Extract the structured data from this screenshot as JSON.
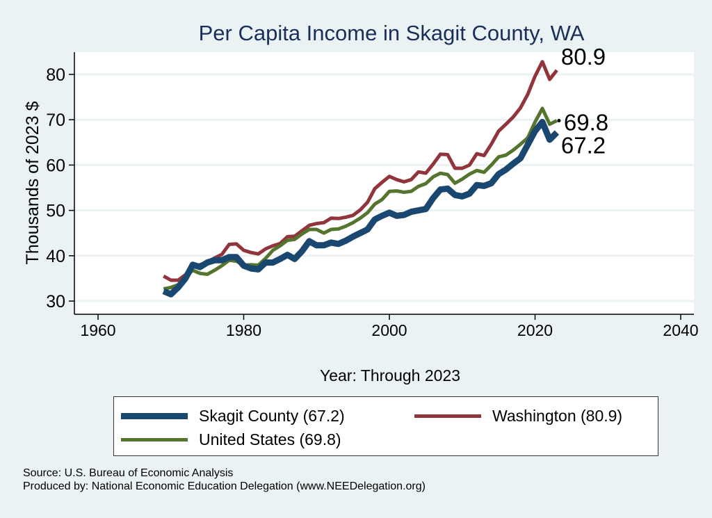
{
  "chart_data": {
    "type": "line",
    "title": "Per Capita Income in Skagit County, WA",
    "xlabel": "Year: Through 2023",
    "ylabel": "Thousands of 2023 $",
    "xlim": [
      1960,
      2040
    ],
    "ylim": [
      28,
      85
    ],
    "xticks": [
      1960,
      1980,
      2000,
      2020,
      2040
    ],
    "yticks": [
      30,
      40,
      50,
      60,
      70,
      80
    ],
    "grid": true,
    "legend_position": "bottom",
    "x_start": 1969,
    "series": [
      {
        "name": "Skagit County (67.2)",
        "color": "#1a476f",
        "end_label": "67.2",
        "values": [
          32.2,
          31.5,
          33,
          35,
          38,
          37.5,
          38.5,
          39,
          39,
          39.7,
          39.7,
          37.8,
          37.2,
          37,
          38.5,
          38.5,
          39.3,
          40.2,
          39.3,
          41,
          43.2,
          42.3,
          42.3,
          42.9,
          42.6,
          43.3,
          44.2,
          45,
          45.8,
          48,
          48.8,
          49.5,
          48.8,
          49,
          49.7,
          50,
          50.3,
          52.7,
          54.6,
          54.8,
          53.4,
          53.1,
          53.7,
          55.6,
          55.4,
          56,
          58,
          59,
          60.3,
          61.5,
          64.5,
          67.5,
          69.5,
          65.6,
          67.2
        ]
      },
      {
        "name": "Washington (80.9)",
        "color": "#90353b",
        "end_label": "80.9",
        "values": [
          35.5,
          34.6,
          34.6,
          35.8,
          37.5,
          38,
          38.6,
          39.5,
          40.3,
          42.5,
          42.6,
          41.2,
          40.7,
          40.4,
          41.5,
          42.2,
          42.7,
          44.2,
          44.3,
          45.5,
          46.7,
          47.1,
          47.3,
          48.3,
          48.2,
          48.5,
          48.9,
          50.1,
          51.8,
          54.8,
          56.2,
          57.5,
          56.8,
          56.3,
          56.8,
          58.5,
          58.2,
          60.2,
          62.4,
          62.3,
          59.3,
          59.3,
          60,
          62.5,
          62.1,
          64.6,
          67.5,
          69,
          70.6,
          72.6,
          75.6,
          79.6,
          82.8,
          78.9,
          80.9
        ]
      },
      {
        "name": "United States (69.8)",
        "color": "#55752f",
        "end_label": "69.8",
        "values": [
          32.7,
          33,
          33.6,
          35.3,
          36.8,
          36.1,
          35.9,
          36.8,
          37.8,
          39,
          38.8,
          37.9,
          38,
          37.9,
          39.4,
          41.2,
          42.2,
          43.4,
          43.6,
          44.8,
          45.8,
          45.8,
          45,
          45.8,
          45.9,
          46.5,
          47.3,
          48.3,
          49.5,
          51.4,
          52.4,
          54.2,
          54.3,
          54,
          54.2,
          55.3,
          55.9,
          57.4,
          58.2,
          57.9,
          56,
          56.9,
          58,
          58.8,
          58.4,
          60,
          61.8,
          62.2,
          63.3,
          64.6,
          66,
          69.5,
          72.5,
          69,
          69.8
        ]
      }
    ]
  },
  "footer": {
    "source": "Source: U.S. Bureau of Economic Analysis",
    "produced": "Produced by: National Economic Education Delegation (www.NEEDelegation.org)"
  }
}
